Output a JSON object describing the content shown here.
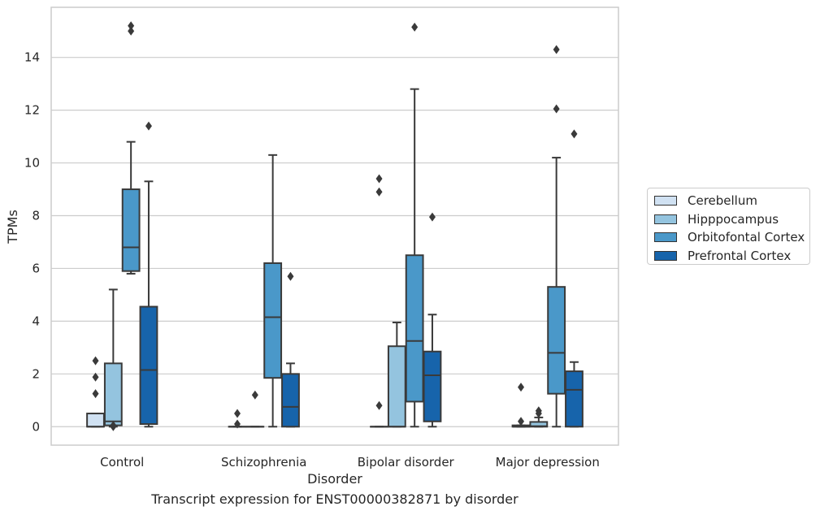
{
  "caption": "Transcript expression for ENST00000382871 by disorder",
  "chart_data": {
    "type": "box",
    "xlabel": "Disorder",
    "ylabel": "TPMs",
    "categories": [
      "Control",
      "Schizophrenia",
      "Bipolar disorder",
      "Major depression"
    ],
    "ylim": [
      -0.7,
      15.9
    ],
    "yticks": [
      0,
      2,
      4,
      6,
      8,
      10,
      12,
      14
    ],
    "grid": "horizontal",
    "legend_position": "right",
    "series": [
      {
        "name": "Cerebellum",
        "color": "#d0e1f2",
        "boxes": [
          {
            "whislo": 0,
            "q1": 0,
            "med": 0,
            "q3": 0.5,
            "whishi": 0.5,
            "fliers": [
              1.25,
              1.88,
              2.5
            ]
          },
          {
            "whislo": 0,
            "q1": 0,
            "med": 0,
            "q3": 0,
            "whishi": 0,
            "fliers": [
              0.1,
              0.5
            ]
          },
          {
            "whislo": 0,
            "q1": 0,
            "med": 0,
            "q3": 0,
            "whishi": 0,
            "fliers": [
              0.8,
              8.9,
              9.4
            ]
          },
          {
            "whislo": 0,
            "q1": 0,
            "med": 0,
            "q3": 0.05,
            "whishi": 0.05,
            "fliers": [
              0.2,
              1.5
            ]
          }
        ]
      },
      {
        "name": "Hipppocampus",
        "color": "#94c4df",
        "boxes": [
          {
            "whislo": 0,
            "q1": 0.05,
            "med": 0.2,
            "q3": 2.4,
            "whishi": 5.2,
            "fliers": [
              0,
              0.05
            ]
          },
          {
            "whislo": 0,
            "q1": 0,
            "med": 0,
            "q3": 0,
            "whishi": 0,
            "fliers": [
              1.2
            ]
          },
          {
            "whislo": 0,
            "q1": 0,
            "med": 0,
            "q3": 3.05,
            "whishi": 3.95,
            "fliers": []
          },
          {
            "whislo": 0,
            "q1": 0,
            "med": 0.02,
            "q3": 0.18,
            "whishi": 0.35,
            "fliers": [
              0.5,
              0.6
            ]
          }
        ]
      },
      {
        "name": "Orbitofontal Cortex",
        "color": "#4a98c9",
        "boxes": [
          {
            "whislo": 5.8,
            "q1": 5.9,
            "med": 6.8,
            "q3": 9.0,
            "whishi": 10.8,
            "fliers": [
              15.0,
              15.2
            ]
          },
          {
            "whislo": 0,
            "q1": 1.85,
            "med": 4.15,
            "q3": 6.2,
            "whishi": 10.3,
            "fliers": []
          },
          {
            "whislo": 0,
            "q1": 0.95,
            "med": 3.25,
            "q3": 6.5,
            "whishi": 12.8,
            "fliers": [
              15.15
            ]
          },
          {
            "whislo": 0,
            "q1": 1.25,
            "med": 2.8,
            "q3": 5.3,
            "whishi": 10.2,
            "fliers": [
              12.05,
              14.3
            ]
          }
        ]
      },
      {
        "name": "Prefrontal Cortex",
        "color": "#1764ab",
        "boxes": [
          {
            "whislo": 0,
            "q1": 0.1,
            "med": 2.15,
            "q3": 4.55,
            "whishi": 9.3,
            "fliers": [
              11.4
            ]
          },
          {
            "whislo": 0,
            "q1": 0,
            "med": 0.75,
            "q3": 2.0,
            "whishi": 2.4,
            "fliers": [
              5.7
            ]
          },
          {
            "whislo": 0,
            "q1": 0.2,
            "med": 1.95,
            "q3": 2.85,
            "whishi": 4.25,
            "fliers": [
              7.95
            ]
          },
          {
            "whislo": 0,
            "q1": 0,
            "med": 1.4,
            "q3": 2.1,
            "whishi": 2.45,
            "fliers": [
              11.1
            ]
          }
        ]
      }
    ]
  }
}
